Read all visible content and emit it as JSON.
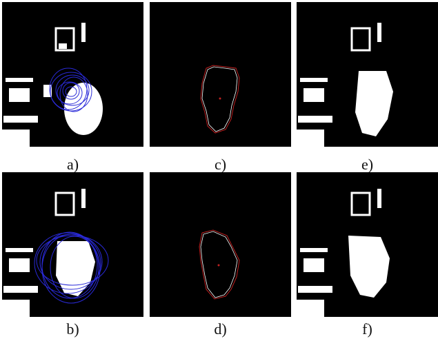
{
  "figure": {
    "panels": [
      {
        "id": "a",
        "caption": "a)",
        "content": "face-frame-with-blue-ellipse-hypotheses-on-face"
      },
      {
        "id": "c",
        "caption": "c)",
        "content": "face-contour-outline"
      },
      {
        "id": "e",
        "caption": "e)",
        "content": "face-frame-segmented"
      },
      {
        "id": "b",
        "caption": "b)",
        "content": "face-frame-with-blue-ellipse-hypotheses-spread"
      },
      {
        "id": "d",
        "caption": "d)",
        "content": "face-contour-outline"
      },
      {
        "id": "f",
        "caption": "f)",
        "content": "face-frame-segmented"
      }
    ],
    "colors": {
      "background": "#000000",
      "ellipses": "#2a2ad8",
      "contour_outer": "#c02020",
      "contour_inner": "#ffffff"
    }
  }
}
